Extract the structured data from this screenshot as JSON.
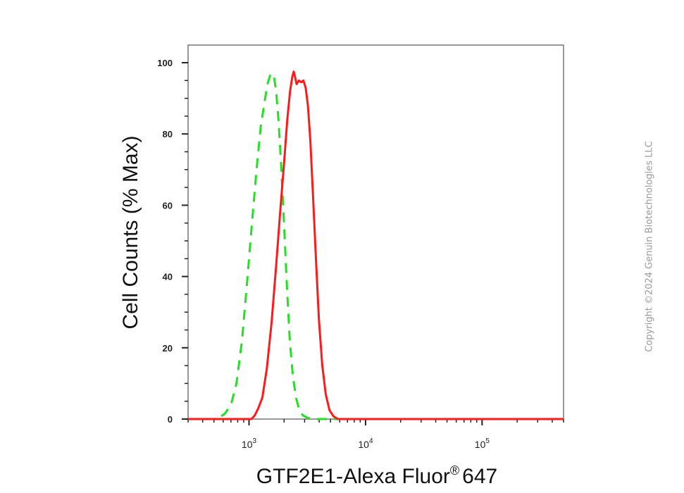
{
  "chart_data": {
    "type": "line",
    "xlabel": "GTF2E1-Alexa Fluor",
    "xlabel_superscript": "®",
    "xlabel_suffix": "647",
    "ylabel": "Cell Counts (% Max)",
    "x_scale": "log",
    "xlim": [
      300,
      500000
    ],
    "ylim": [
      0,
      105
    ],
    "y_ticks": [
      0,
      20,
      40,
      60,
      80,
      100
    ],
    "x_major_ticks": [
      {
        "value": 1000,
        "base": "10",
        "exp": "3"
      },
      {
        "value": 10000,
        "base": "10",
        "exp": "4"
      },
      {
        "value": 100000,
        "base": "10",
        "exp": "5"
      }
    ],
    "grid": false,
    "legend": "none",
    "series": [
      {
        "style": "dashed",
        "color": "#22e022",
        "points": [
          [
            300,
            0
          ],
          [
            500,
            0
          ],
          [
            560,
            0.5
          ],
          [
            620,
            1.5
          ],
          [
            700,
            4
          ],
          [
            780,
            10
          ],
          [
            870,
            22
          ],
          [
            960,
            38
          ],
          [
            1060,
            55
          ],
          [
            1160,
            70
          ],
          [
            1260,
            82
          ],
          [
            1360,
            89
          ],
          [
            1440,
            94
          ],
          [
            1520,
            96.5
          ],
          [
            1580,
            97
          ],
          [
            1640,
            96
          ],
          [
            1710,
            92
          ],
          [
            1790,
            84
          ],
          [
            1880,
            72
          ],
          [
            1990,
            56
          ],
          [
            2110,
            38
          ],
          [
            2240,
            22
          ],
          [
            2380,
            12
          ],
          [
            2530,
            6
          ],
          [
            2700,
            2.5
          ],
          [
            2900,
            1
          ],
          [
            3200,
            0.3
          ],
          [
            3600,
            0
          ],
          [
            500000,
            0
          ]
        ]
      },
      {
        "style": "solid",
        "color": "#ff1a1a",
        "points": [
          [
            300,
            0
          ],
          [
            1050,
            0
          ],
          [
            1120,
            1
          ],
          [
            1200,
            3
          ],
          [
            1300,
            6
          ],
          [
            1420,
            14
          ],
          [
            1560,
            27
          ],
          [
            1700,
            42
          ],
          [
            1850,
            58
          ],
          [
            2000,
            72
          ],
          [
            2130,
            84
          ],
          [
            2250,
            92
          ],
          [
            2350,
            96
          ],
          [
            2420,
            97.5
          ],
          [
            2480,
            96
          ],
          [
            2560,
            94
          ],
          [
            2680,
            95
          ],
          [
            2800,
            94.5
          ],
          [
            2930,
            95
          ],
          [
            3060,
            93
          ],
          [
            3200,
            88
          ],
          [
            3360,
            78
          ],
          [
            3550,
            62
          ],
          [
            3750,
            45
          ],
          [
            3980,
            28
          ],
          [
            4250,
            15
          ],
          [
            4550,
            7
          ],
          [
            4900,
            2.5
          ],
          [
            5300,
            0.8
          ],
          [
            5800,
            0
          ],
          [
            500000,
            0
          ]
        ]
      }
    ]
  },
  "watermark": "Copyright ©2024 Genuin Biotechnologies LLC"
}
